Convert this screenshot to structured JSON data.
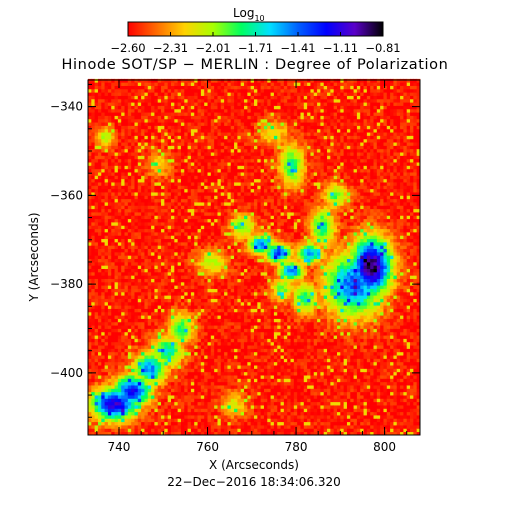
{
  "colorbar": {
    "label_main": "Log",
    "label_sub": "10",
    "ticks": [
      "−2.60",
      "−2.31",
      "−2.01",
      "−1.71",
      "−1.41",
      "−1.11",
      "−0.81"
    ],
    "range": [
      -2.6,
      -0.81
    ],
    "colors": [
      "#ff0000",
      "#ff6a00",
      "#ffd200",
      "#a8ff00",
      "#00ff60",
      "#00e0ff",
      "#0060ff",
      "#0000ff",
      "#5a00c8",
      "#000000"
    ]
  },
  "chart_data": {
    "type": "heatmap",
    "title": "Hinode SOT/SP − MERLIN : Degree of Polarization",
    "xlabel": "X (Arcseconds)",
    "ylabel": "Y (Arcseconds)",
    "timestamp": "22−Dec−2016 18:34:06.320",
    "xlim": [
      733,
      808
    ],
    "ylim": [
      -414,
      -334
    ],
    "xticks": [
      740,
      760,
      780,
      800
    ],
    "yticks": [
      -340,
      -360,
      -380,
      -400
    ],
    "xtick_labels": [
      "740",
      "760",
      "780",
      "800"
    ],
    "ytick_labels": [
      "−340",
      "−360",
      "−380",
      "−400"
    ],
    "grid": false,
    "value_units": "log10 degree of polarization",
    "background_level": -2.55,
    "features": [
      {
        "x": 797,
        "y": -376,
        "peak": -0.85,
        "sx": 3.2,
        "sy": 4.5
      },
      {
        "x": 793,
        "y": -380,
        "peak": -1.35,
        "sx": 4.5,
        "sy": 5.0
      },
      {
        "x": 739,
        "y": -407,
        "peak": -1.05,
        "sx": 3.5,
        "sy": 2.5
      },
      {
        "x": 743,
        "y": -404,
        "peak": -1.2,
        "sx": 3.0,
        "sy": 2.5
      },
      {
        "x": 747,
        "y": -399,
        "peak": -1.45,
        "sx": 2.5,
        "sy": 2.5
      },
      {
        "x": 751,
        "y": -395,
        "peak": -1.7,
        "sx": 2.5,
        "sy": 2.5
      },
      {
        "x": 754,
        "y": -390,
        "peak": -1.8,
        "sx": 2.0,
        "sy": 2.5
      },
      {
        "x": 772,
        "y": -371,
        "peak": -1.4,
        "sx": 2.0,
        "sy": 1.5
      },
      {
        "x": 776,
        "y": -373,
        "peak": -1.3,
        "sx": 2.0,
        "sy": 1.5
      },
      {
        "x": 779,
        "y": -377,
        "peak": -1.4,
        "sx": 2.0,
        "sy": 1.5
      },
      {
        "x": 783,
        "y": -373,
        "peak": -1.45,
        "sx": 2.0,
        "sy": 1.5
      },
      {
        "x": 786,
        "y": -367,
        "peak": -1.75,
        "sx": 2.0,
        "sy": 3.0
      },
      {
        "x": 782,
        "y": -383,
        "peak": -1.75,
        "sx": 2.0,
        "sy": 2.5
      },
      {
        "x": 777,
        "y": -381,
        "peak": -1.9,
        "sx": 1.8,
        "sy": 2.0
      },
      {
        "x": 779,
        "y": -353,
        "peak": -1.8,
        "sx": 2.0,
        "sy": 3.5
      },
      {
        "x": 768,
        "y": -367,
        "peak": -1.9,
        "sx": 2.0,
        "sy": 2.0
      },
      {
        "x": 789,
        "y": -360,
        "peak": -1.9,
        "sx": 2.0,
        "sy": 2.0
      },
      {
        "x": 761,
        "y": -375,
        "peak": -2.0,
        "sx": 2.5,
        "sy": 2.0
      },
      {
        "x": 737,
        "y": -347,
        "peak": -2.0,
        "sx": 1.5,
        "sy": 1.5
      },
      {
        "x": 775,
        "y": -346,
        "peak": -2.1,
        "sx": 2.5,
        "sy": 2.0
      },
      {
        "x": 766,
        "y": -407,
        "peak": -2.1,
        "sx": 2.0,
        "sy": 2.0
      },
      {
        "x": 749,
        "y": -353,
        "peak": -2.15,
        "sx": 2.0,
        "sy": 2.0
      }
    ]
  }
}
